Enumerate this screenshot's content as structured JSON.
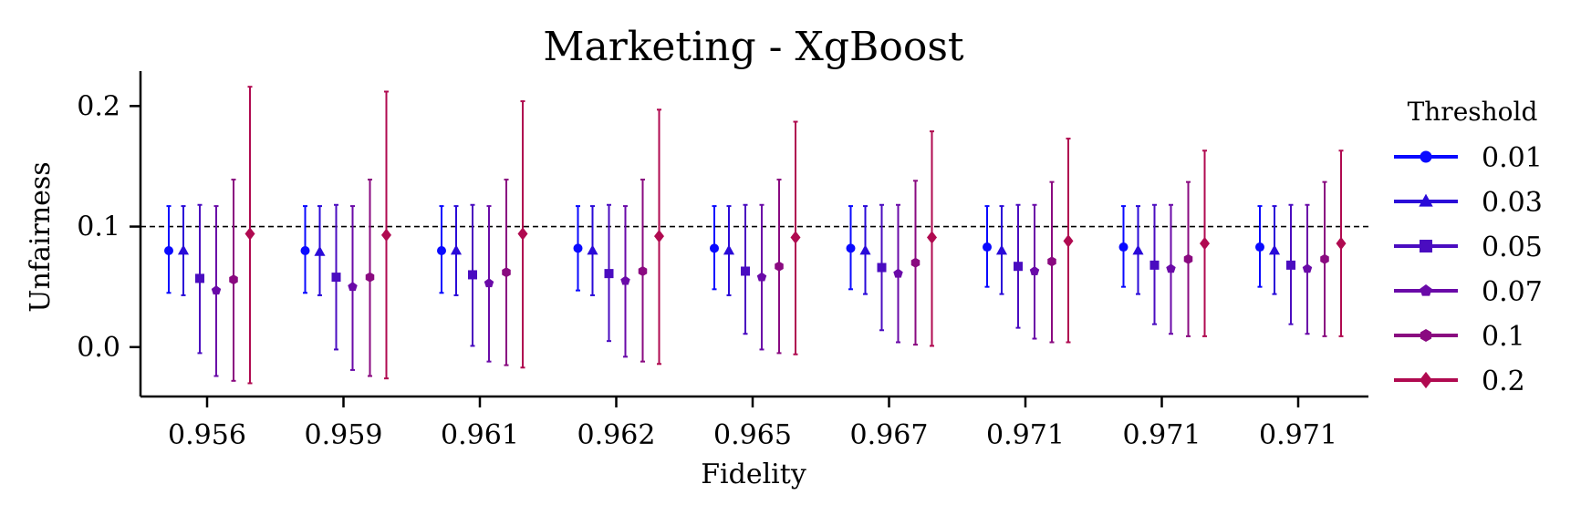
{
  "chart_data": {
    "type": "errorbar",
    "title": "Marketing - XgBoost",
    "xlabel": "Fidelity",
    "ylabel": "Unfairness",
    "categories": [
      "0.956",
      "0.959",
      "0.961",
      "0.962",
      "0.965",
      "0.967",
      "0.971",
      "0.971",
      "0.971"
    ],
    "yticks": [
      "0.0",
      "0.1",
      "0.2"
    ],
    "ylim": [
      -0.041,
      0.229
    ],
    "reference_line": {
      "y": 0.1,
      "style": "dashed"
    },
    "legend": {
      "title": "Threshold",
      "placement": "right"
    },
    "series": [
      {
        "name": "0.01",
        "color": "#0a0aff",
        "marker": "circle",
        "values": [
          0.08,
          0.08,
          0.08,
          0.082,
          0.082,
          0.082,
          0.083,
          0.083,
          0.083
        ],
        "lower": [
          0.045,
          0.045,
          0.045,
          0.047,
          0.048,
          0.048,
          0.05,
          0.05,
          0.05
        ],
        "upper": [
          0.117,
          0.117,
          0.117,
          0.117,
          0.117,
          0.117,
          0.117,
          0.117,
          0.117
        ]
      },
      {
        "name": "0.03",
        "color": "#2a0ad8",
        "marker": "triangle",
        "values": [
          0.08,
          0.079,
          0.08,
          0.08,
          0.08,
          0.08,
          0.08,
          0.08,
          0.08
        ],
        "lower": [
          0.043,
          0.043,
          0.043,
          0.043,
          0.043,
          0.044,
          0.044,
          0.044,
          0.044
        ],
        "upper": [
          0.117,
          0.117,
          0.117,
          0.117,
          0.117,
          0.117,
          0.117,
          0.117,
          0.117
        ]
      },
      {
        "name": "0.05",
        "color": "#4a0cc0",
        "marker": "square",
        "values": [
          0.057,
          0.058,
          0.06,
          0.061,
          0.063,
          0.066,
          0.067,
          0.068,
          0.068
        ],
        "lower": [
          -0.005,
          -0.002,
          0.001,
          0.005,
          0.011,
          0.014,
          0.016,
          0.019,
          0.019
        ],
        "upper": [
          0.118,
          0.118,
          0.118,
          0.118,
          0.118,
          0.118,
          0.118,
          0.118,
          0.118
        ]
      },
      {
        "name": "0.07",
        "color": "#6a0aa8",
        "marker": "pentagon",
        "values": [
          0.047,
          0.05,
          0.053,
          0.055,
          0.058,
          0.061,
          0.063,
          0.065,
          0.065
        ],
        "lower": [
          -0.024,
          -0.019,
          -0.012,
          -0.008,
          -0.002,
          0.004,
          0.007,
          0.011,
          0.011
        ],
        "upper": [
          0.117,
          0.117,
          0.117,
          0.117,
          0.118,
          0.118,
          0.118,
          0.118,
          0.118
        ]
      },
      {
        "name": "0.1",
        "color": "#8a0a80",
        "marker": "hexagon",
        "values": [
          0.056,
          0.058,
          0.062,
          0.063,
          0.067,
          0.07,
          0.071,
          0.073,
          0.073
        ],
        "lower": [
          -0.028,
          -0.024,
          -0.015,
          -0.012,
          -0.005,
          0.002,
          0.004,
          0.009,
          0.009
        ],
        "upper": [
          0.139,
          0.139,
          0.139,
          0.139,
          0.139,
          0.138,
          0.137,
          0.137,
          0.137
        ]
      },
      {
        "name": "0.2",
        "color": "#b00a50",
        "marker": "diamond",
        "values": [
          0.094,
          0.093,
          0.094,
          0.092,
          0.091,
          0.091,
          0.088,
          0.086,
          0.086
        ],
        "lower": [
          -0.03,
          -0.026,
          -0.017,
          -0.014,
          -0.006,
          0.001,
          0.004,
          0.009,
          0.009
        ],
        "upper": [
          0.216,
          0.212,
          0.204,
          0.197,
          0.187,
          0.179,
          0.173,
          0.163,
          0.163
        ]
      }
    ]
  }
}
